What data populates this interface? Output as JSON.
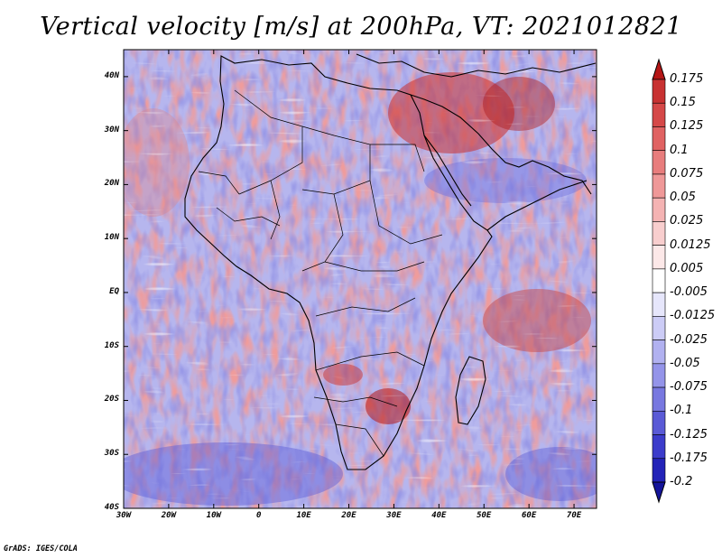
{
  "title": "Vertical velocity [m/s] at 200hPa, VT: 2021012821",
  "footer": "GrADS: IGES/COLA",
  "map": {
    "lat_labels": [
      "40N",
      "30N",
      "20N",
      "10N",
      "EQ",
      "10S",
      "20S",
      "30S",
      "40S"
    ],
    "lon_labels": [
      "30W",
      "20W",
      "10W",
      "0",
      "10E",
      "20E",
      "30E",
      "40E",
      "50E",
      "60E",
      "70E"
    ],
    "lat_range": [
      -40,
      45
    ],
    "lon_range": [
      -30,
      75
    ]
  },
  "colorbar": {
    "labels": [
      "0.175",
      "0.15",
      "0.125",
      "0.1",
      "0.075",
      "0.05",
      "0.025",
      "0.0125",
      "0.005",
      "-0.005",
      "-0.0125",
      "-0.025",
      "-0.05",
      "-0.075",
      "-0.1",
      "-0.125",
      "-0.175",
      "-0.2"
    ],
    "colors": [
      "#b51616",
      "#c83232",
      "#d54848",
      "#e06262",
      "#e87d7d",
      "#ef9898",
      "#f4b3b3",
      "#f8cece",
      "#fce8e8",
      "#ffffff",
      "#e6e6fb",
      "#ccccf6",
      "#b1b1f0",
      "#9494e9",
      "#7878e0",
      "#5a5ad6",
      "#3c3ccb",
      "#2323b8",
      "#14149a"
    ]
  }
}
